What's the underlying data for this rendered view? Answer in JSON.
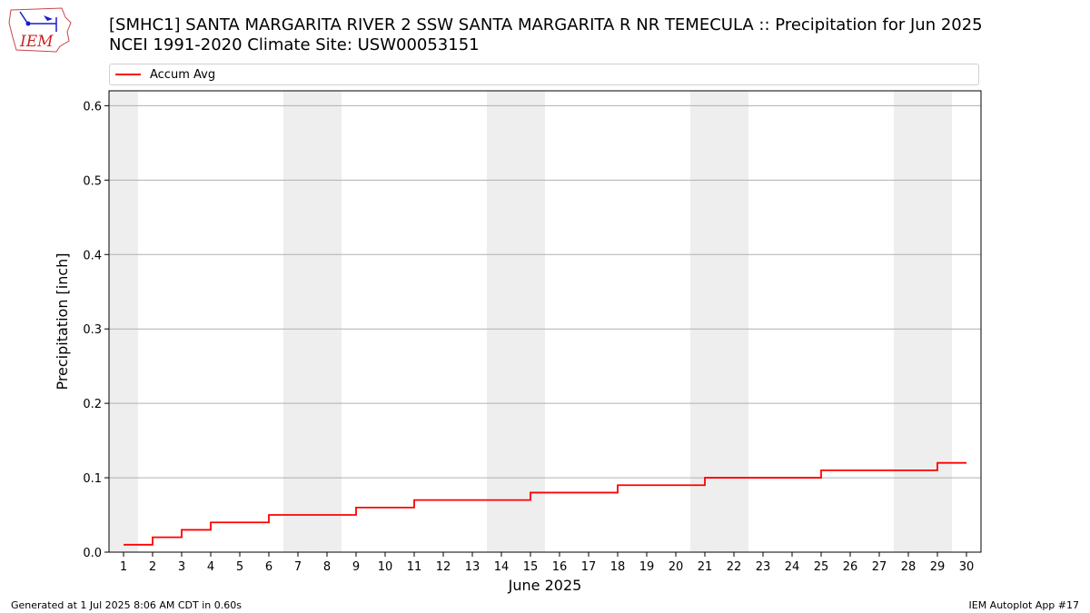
{
  "logo": {
    "text": "IEM",
    "icon": "iem-iowa-logo-icon",
    "color": "#cc2222"
  },
  "title": {
    "line1": "[SMHC1] SANTA MARGARITA RIVER 2 SSW SANTA MARGARITA R NR TEMECULA :: Precipitation for Jun 2025",
    "line2": "NCEI 1991-2020 Climate Site: USW00053151"
  },
  "legend": {
    "position": "top",
    "entries": [
      {
        "label": "Accum Avg",
        "color": "#ff0000"
      }
    ]
  },
  "footer": {
    "left": "Generated at 1 Jul 2025 8:06 AM CDT in 0.60s",
    "right": "IEM Autoplot App #17"
  },
  "chart_data": {
    "type": "line",
    "xlabel": "June 2025",
    "ylabel": "Precipitation [inch]",
    "x": [
      1,
      2,
      3,
      4,
      5,
      6,
      7,
      8,
      9,
      10,
      11,
      12,
      13,
      14,
      15,
      16,
      17,
      18,
      19,
      20,
      21,
      22,
      23,
      24,
      25,
      26,
      27,
      28,
      29,
      30
    ],
    "xlim": [
      0.5,
      30.5
    ],
    "ylim": [
      0,
      0.62
    ],
    "yticks": [
      0.0,
      0.1,
      0.2,
      0.3,
      0.4,
      0.5,
      0.6
    ],
    "ytick_labels": [
      "0.0",
      "0.1",
      "0.2",
      "0.3",
      "0.4",
      "0.5",
      "0.6"
    ],
    "grid": "y",
    "weekend_shading": [
      [
        0.5,
        1.5
      ],
      [
        6.5,
        8.5
      ],
      [
        13.5,
        15.5
      ],
      [
        20.5,
        22.5
      ],
      [
        27.5,
        29.5
      ]
    ],
    "shading_color": "#eeeeee",
    "series": [
      {
        "name": "Accum Avg",
        "color": "#ff0000",
        "step": "post",
        "values": [
          0.01,
          0.02,
          0.03,
          0.04,
          0.04,
          0.05,
          0.05,
          0.05,
          0.06,
          0.06,
          0.07,
          0.07,
          0.07,
          0.07,
          0.08,
          0.08,
          0.08,
          0.09,
          0.09,
          0.09,
          0.1,
          0.1,
          0.1,
          0.1,
          0.11,
          0.11,
          0.11,
          0.11,
          0.12,
          0.12
        ]
      }
    ]
  }
}
